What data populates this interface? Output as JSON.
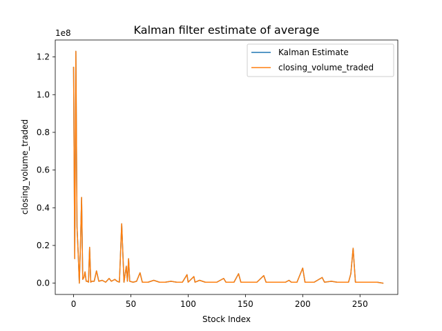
{
  "chart_data": {
    "type": "line",
    "title": "Kalman filter estimate of average",
    "xlabel": "Stock Index",
    "ylabel": "closing_volume_traded",
    "y_offset_text": "1e8",
    "xlim": [
      -16,
      283
    ],
    "ylim": [
      -0.06,
      1.29
    ],
    "x_ticks": [
      0,
      50,
      100,
      150,
      200,
      250
    ],
    "y_ticks": [
      0.0,
      0.2,
      0.4,
      0.6,
      0.8,
      1.0,
      1.2
    ],
    "x_tick_labels": [
      "0",
      "50",
      "100",
      "150",
      "200",
      "250"
    ],
    "y_tick_labels": [
      "0.0",
      "0.2",
      "0.4",
      "0.6",
      "0.8",
      "1.0",
      "1.2"
    ],
    "legend": {
      "position": "top-right"
    },
    "series": [
      {
        "name": "Kalman Estimate",
        "color": "#1f77b4",
        "points": [
          [
            0,
            1.145
          ],
          [
            1,
            0.13
          ],
          [
            2,
            1.23
          ],
          [
            3,
            0.3
          ],
          [
            4,
            0.16
          ],
          [
            5,
            0.0
          ],
          [
            6,
            0.2
          ],
          [
            7,
            0.455
          ],
          [
            8,
            0.02
          ],
          [
            9,
            0.03
          ],
          [
            10,
            0.06
          ],
          [
            11,
            0.01
          ],
          [
            12,
            0.01
          ],
          [
            13,
            0.005
          ],
          [
            14,
            0.19
          ],
          [
            15,
            0.005
          ],
          [
            16,
            0.01
          ],
          [
            18,
            0.01
          ],
          [
            20,
            0.065
          ],
          [
            22,
            0.01
          ],
          [
            25,
            0.015
          ],
          [
            28,
            0.005
          ],
          [
            31,
            0.025
          ],
          [
            33,
            0.01
          ],
          [
            36,
            0.02
          ],
          [
            38,
            0.01
          ],
          [
            40,
            0.005
          ],
          [
            42,
            0.315
          ],
          [
            44,
            0.005
          ],
          [
            46,
            0.09
          ],
          [
            47,
            0.01
          ],
          [
            48,
            0.13
          ],
          [
            49,
            0.01
          ],
          [
            52,
            0.005
          ],
          [
            55,
            0.01
          ],
          [
            58,
            0.055
          ],
          [
            60,
            0.005
          ],
          [
            65,
            0.005
          ],
          [
            70,
            0.015
          ],
          [
            75,
            0.005
          ],
          [
            80,
            0.005
          ],
          [
            85,
            0.01
          ],
          [
            90,
            0.005
          ],
          [
            95,
            0.005
          ],
          [
            99,
            0.045
          ],
          [
            100,
            0.005
          ],
          [
            105,
            0.035
          ],
          [
            106,
            0.005
          ],
          [
            110,
            0.015
          ],
          [
            115,
            0.005
          ],
          [
            120,
            0.005
          ],
          [
            125,
            0.005
          ],
          [
            131,
            0.025
          ],
          [
            133,
            0.005
          ],
          [
            140,
            0.005
          ],
          [
            144,
            0.05
          ],
          [
            146,
            0.005
          ],
          [
            150,
            0.005
          ],
          [
            155,
            0.005
          ],
          [
            160,
            0.005
          ],
          [
            166,
            0.04
          ],
          [
            168,
            0.005
          ],
          [
            175,
            0.005
          ],
          [
            180,
            0.005
          ],
          [
            185,
            0.005
          ],
          [
            188,
            0.015
          ],
          [
            190,
            0.005
          ],
          [
            195,
            0.005
          ],
          [
            200,
            0.08
          ],
          [
            202,
            0.005
          ],
          [
            210,
            0.005
          ],
          [
            217,
            0.03
          ],
          [
            219,
            0.005
          ],
          [
            225,
            0.01
          ],
          [
            230,
            0.005
          ],
          [
            235,
            0.005
          ],
          [
            240,
            0.005
          ],
          [
            242,
            0.05
          ],
          [
            244,
            0.185
          ],
          [
            246,
            0.005
          ],
          [
            250,
            0.005
          ],
          [
            255,
            0.005
          ],
          [
            260,
            0.005
          ],
          [
            265,
            0.005
          ],
          [
            270,
            0.0
          ]
        ]
      },
      {
        "name": "closing_volume_traded",
        "color": "#ff7f0e",
        "points": [
          [
            0,
            1.145
          ],
          [
            1,
            0.13
          ],
          [
            2,
            1.23
          ],
          [
            3,
            0.3
          ],
          [
            4,
            0.16
          ],
          [
            5,
            0.0
          ],
          [
            6,
            0.2
          ],
          [
            7,
            0.455
          ],
          [
            8,
            0.02
          ],
          [
            9,
            0.03
          ],
          [
            10,
            0.06
          ],
          [
            11,
            0.01
          ],
          [
            12,
            0.01
          ],
          [
            13,
            0.005
          ],
          [
            14,
            0.19
          ],
          [
            15,
            0.005
          ],
          [
            16,
            0.01
          ],
          [
            18,
            0.01
          ],
          [
            20,
            0.065
          ],
          [
            22,
            0.01
          ],
          [
            25,
            0.015
          ],
          [
            28,
            0.005
          ],
          [
            31,
            0.025
          ],
          [
            33,
            0.01
          ],
          [
            36,
            0.02
          ],
          [
            38,
            0.01
          ],
          [
            40,
            0.005
          ],
          [
            42,
            0.315
          ],
          [
            44,
            0.005
          ],
          [
            46,
            0.09
          ],
          [
            47,
            0.01
          ],
          [
            48,
            0.13
          ],
          [
            49,
            0.01
          ],
          [
            52,
            0.005
          ],
          [
            55,
            0.01
          ],
          [
            58,
            0.055
          ],
          [
            60,
            0.005
          ],
          [
            65,
            0.005
          ],
          [
            70,
            0.015
          ],
          [
            75,
            0.005
          ],
          [
            80,
            0.005
          ],
          [
            85,
            0.01
          ],
          [
            90,
            0.005
          ],
          [
            95,
            0.005
          ],
          [
            99,
            0.045
          ],
          [
            100,
            0.005
          ],
          [
            105,
            0.035
          ],
          [
            106,
            0.005
          ],
          [
            110,
            0.015
          ],
          [
            115,
            0.005
          ],
          [
            120,
            0.005
          ],
          [
            125,
            0.005
          ],
          [
            131,
            0.025
          ],
          [
            133,
            0.005
          ],
          [
            140,
            0.005
          ],
          [
            144,
            0.05
          ],
          [
            146,
            0.005
          ],
          [
            150,
            0.005
          ],
          [
            155,
            0.005
          ],
          [
            160,
            0.005
          ],
          [
            166,
            0.04
          ],
          [
            168,
            0.005
          ],
          [
            175,
            0.005
          ],
          [
            180,
            0.005
          ],
          [
            185,
            0.005
          ],
          [
            188,
            0.015
          ],
          [
            190,
            0.005
          ],
          [
            195,
            0.005
          ],
          [
            200,
            0.08
          ],
          [
            202,
            0.005
          ],
          [
            210,
            0.005
          ],
          [
            217,
            0.03
          ],
          [
            219,
            0.005
          ],
          [
            225,
            0.01
          ],
          [
            230,
            0.005
          ],
          [
            235,
            0.005
          ],
          [
            240,
            0.005
          ],
          [
            242,
            0.05
          ],
          [
            244,
            0.185
          ],
          [
            246,
            0.005
          ],
          [
            250,
            0.005
          ],
          [
            255,
            0.005
          ],
          [
            260,
            0.005
          ],
          [
            265,
            0.005
          ],
          [
            270,
            0.0
          ]
        ]
      }
    ]
  }
}
